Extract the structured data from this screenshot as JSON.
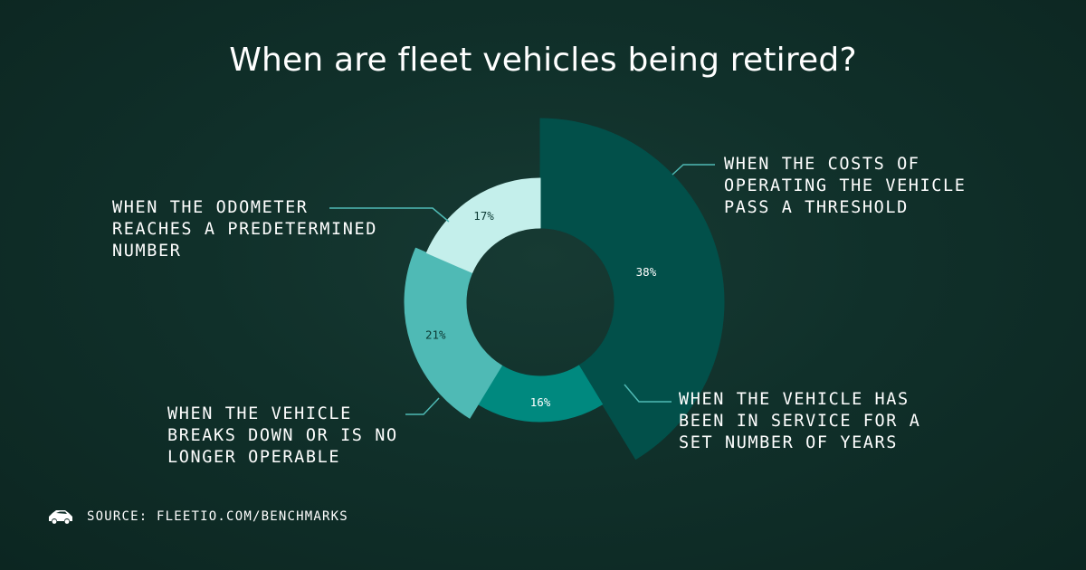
{
  "colors": {
    "background": "#10302a",
    "slice_costs": "#02504a",
    "slice_years": "#00897f",
    "slice_breakdown": "#4fbab5",
    "slice_odometer": "#c4efeb",
    "leader": "#4fbab5"
  },
  "footer": {
    "icon": "fleet-car-icon",
    "source_label": "SOURCE: FLEETIO.COM/BENCHMARKS"
  },
  "chart_data": {
    "type": "pie",
    "variant": "variable-radius donut",
    "title": "When are fleet vehicles being retired?",
    "slices": [
      {
        "label": "WHEN THE COSTS OF\nOPERATING THE VEHICLE\nPASS A THRESHOLD",
        "value": 38,
        "value_label": "38%"
      },
      {
        "label": "WHEN THE VEHICLE HAS\nBEEN IN SERVICE FOR A\nSET NUMBER OF YEARS",
        "value": 16,
        "value_label": "16%"
      },
      {
        "label": "WHEN THE VEHICLE\nBREAKS DOWN OR IS NO\nLONGER OPERABLE",
        "value": 21,
        "value_label": "21%"
      },
      {
        "label": "WHEN THE ODOMETER\nREACHES A PREDETERMINED\nNUMBER",
        "value": 17,
        "value_label": "17%"
      }
    ]
  }
}
